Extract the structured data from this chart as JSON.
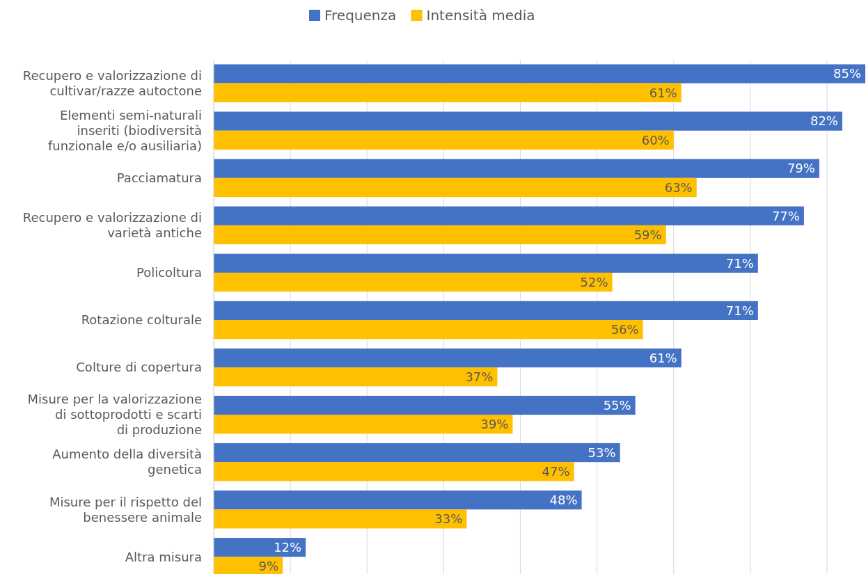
{
  "chart_data": {
    "type": "bar",
    "orientation": "horizontal",
    "categories": [
      "Recupero e valorizzazione di\ncultivar/razze autoctone",
      "Elementi semi-naturali\ninseriti (biodiversità\nfunzionale e/o ausiliaria)",
      "Pacciamatura",
      "Recupero e valorizzazione di\nvarietà antiche",
      "Policoltura",
      "Rotazione colturale",
      "Colture di copertura",
      "Misure per la valorizzazione\ndi sottoprodotti e scarti\ndi produzione",
      "Aumento della diversità\ngenetica",
      "Misure per il rispetto del\nbenessere animale",
      "Altra misura"
    ],
    "series": [
      {
        "name": "Frequenza",
        "color": "#4472c4",
        "values": [
          85,
          82,
          79,
          77,
          71,
          71,
          61,
          55,
          53,
          48,
          12
        ],
        "value_labels": [
          "85%",
          "82%",
          "79%",
          "77%",
          "71%",
          "71%",
          "61%",
          "55%",
          "53%",
          "48%",
          "12%"
        ]
      },
      {
        "name": "Intensità media",
        "color": "#ffc000",
        "values": [
          61,
          60,
          63,
          59,
          52,
          56,
          37,
          39,
          47,
          33,
          9
        ],
        "value_labels": [
          "61%",
          "60%",
          "63%",
          "59%",
          "52%",
          "56%",
          "37%",
          "39%",
          "47%",
          "33%",
          "9%"
        ]
      }
    ],
    "xlim": [
      0,
      85
    ],
    "xticks": [
      {
        "value": 0,
        "label": null
      },
      {
        "value": 10,
        "label": null
      },
      {
        "value": 20,
        "label": null
      },
      {
        "value": 30,
        "label": null
      },
      {
        "value": 40,
        "label": null
      },
      {
        "value": 50,
        "label": null
      },
      {
        "value": 60,
        "label": null
      },
      {
        "value": 70,
        "label": null
      },
      {
        "value": 80,
        "label": null
      }
    ],
    "grid": "x",
    "legend": "top",
    "tick_labels": "y"
  }
}
